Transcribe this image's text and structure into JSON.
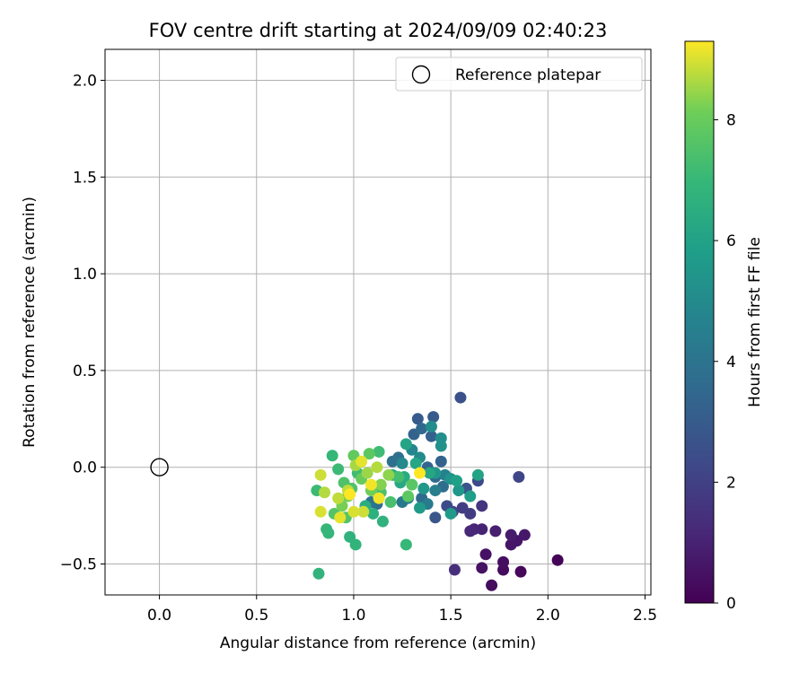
{
  "chart_data": {
    "type": "scatter",
    "title": "FOV centre drift starting at 2024/09/09 02:40:23",
    "xlabel": "Angular distance from reference (arcmin)",
    "ylabel": "Rotation from reference (arcmin)",
    "xlim": [
      -0.28,
      2.53
    ],
    "ylim": [
      -0.66,
      2.16
    ],
    "xticks": [
      {
        "value": 0.0,
        "label": "0.0"
      },
      {
        "value": 0.5,
        "label": "0.5"
      },
      {
        "value": 1.0,
        "label": "1.0"
      },
      {
        "value": 1.5,
        "label": "1.5"
      },
      {
        "value": 2.0,
        "label": "2.0"
      },
      {
        "value": 2.5,
        "label": "2.5"
      }
    ],
    "yticks": [
      {
        "value": -0.5,
        "label": "−0.5"
      },
      {
        "value": 0.0,
        "label": "0.0"
      },
      {
        "value": 0.5,
        "label": "0.5"
      },
      {
        "value": 1.0,
        "label": "1.0"
      },
      {
        "value": 1.5,
        "label": "1.5"
      },
      {
        "value": 2.0,
        "label": "2.0"
      }
    ],
    "grid": true,
    "legend": {
      "position": "top-right",
      "entries": [
        "Reference platepar"
      ]
    },
    "colorbar": {
      "label": "Hours from first FF file",
      "colormap": "viridis",
      "range": [
        0,
        9.3
      ],
      "ticks": [
        {
          "value": 0,
          "label": "0"
        },
        {
          "value": 2,
          "label": "2"
        },
        {
          "value": 4,
          "label": "4"
        },
        {
          "value": 6,
          "label": "6"
        },
        {
          "value": 8,
          "label": "8"
        }
      ]
    },
    "reference_point": {
      "x": 0.0,
      "y": 0.0,
      "name": "Reference platepar"
    },
    "points": [
      [
        2.05,
        -0.48,
        0.1
      ],
      [
        1.86,
        -0.54,
        0.2
      ],
      [
        1.71,
        -0.61,
        0.3
      ],
      [
        1.77,
        -0.53,
        0.3
      ],
      [
        1.77,
        -0.49,
        0.4
      ],
      [
        1.66,
        -0.52,
        0.5
      ],
      [
        1.68,
        -0.45,
        0.5
      ],
      [
        1.84,
        -0.38,
        0.6
      ],
      [
        1.81,
        -0.4,
        0.6
      ],
      [
        1.88,
        -0.35,
        0.7
      ],
      [
        1.81,
        -0.35,
        0.8
      ],
      [
        1.73,
        -0.33,
        0.9
      ],
      [
        1.66,
        -0.32,
        1.0
      ],
      [
        1.62,
        -0.32,
        1.1
      ],
      [
        1.52,
        -0.53,
        1.4
      ],
      [
        1.6,
        -0.33,
        1.2
      ],
      [
        1.66,
        -0.2,
        1.6
      ],
      [
        1.6,
        -0.24,
        1.8
      ],
      [
        1.56,
        -0.21,
        1.9
      ],
      [
        1.85,
        -0.05,
        2.2
      ],
      [
        1.55,
        0.36,
        2.6
      ],
      [
        1.51,
        -0.23,
        2.1
      ],
      [
        1.48,
        -0.2,
        2.4
      ],
      [
        1.58,
        -0.11,
        2.7
      ],
      [
        1.42,
        -0.26,
        2.8
      ],
      [
        1.64,
        -0.07,
        2.3
      ],
      [
        1.33,
        0.25,
        3.0
      ],
      [
        1.41,
        0.26,
        3.0
      ],
      [
        1.4,
        0.16,
        3.2
      ],
      [
        1.31,
        0.17,
        3.3
      ],
      [
        1.35,
        0.2,
        3.5
      ],
      [
        1.45,
        0.03,
        3.3
      ],
      [
        1.38,
        0.0,
        3.4
      ],
      [
        1.42,
        -0.05,
        3.6
      ],
      [
        1.35,
        -0.16,
        3.6
      ],
      [
        1.46,
        -0.1,
        3.7
      ],
      [
        1.23,
        0.05,
        3.8
      ],
      [
        1.2,
        0.03,
        3.9
      ],
      [
        1.12,
        -0.19,
        3.8
      ],
      [
        1.09,
        -0.18,
        4.0
      ],
      [
        1.25,
        -0.18,
        4.2
      ],
      [
        1.38,
        -0.19,
        4.4
      ],
      [
        1.42,
        -0.12,
        4.5
      ],
      [
        1.47,
        -0.04,
        4.6
      ],
      [
        1.28,
        -0.16,
        4.6
      ],
      [
        1.3,
        0.09,
        4.8
      ],
      [
        1.25,
        0.02,
        4.9
      ],
      [
        1.34,
        0.05,
        5.0
      ],
      [
        1.4,
        0.21,
        5.1
      ],
      [
        1.45,
        0.15,
        5.2
      ],
      [
        1.45,
        0.11,
        5.3
      ],
      [
        1.5,
        -0.06,
        5.4
      ],
      [
        1.54,
        -0.12,
        5.5
      ],
      [
        1.42,
        -0.03,
        5.5
      ],
      [
        1.36,
        -0.11,
        5.6
      ],
      [
        1.34,
        -0.21,
        5.7
      ],
      [
        1.5,
        -0.24,
        5.7
      ],
      [
        1.6,
        -0.15,
        5.8
      ],
      [
        1.53,
        -0.07,
        5.9
      ],
      [
        1.64,
        -0.04,
        6.0
      ],
      [
        1.27,
        0.12,
        6.1
      ],
      [
        1.32,
        0.02,
        6.2
      ],
      [
        1.39,
        -0.03,
        6.2
      ],
      [
        1.24,
        -0.08,
        6.3
      ],
      [
        1.26,
        -0.05,
        6.4
      ],
      [
        1.2,
        -0.04,
        6.4
      ],
      [
        1.06,
        -0.2,
        6.5
      ],
      [
        1.1,
        -0.24,
        6.6
      ],
      [
        1.15,
        -0.28,
        6.7
      ],
      [
        0.98,
        -0.36,
        6.7
      ],
      [
        1.01,
        -0.4,
        6.8
      ],
      [
        0.82,
        -0.55,
        6.8
      ],
      [
        0.87,
        -0.34,
        6.9
      ],
      [
        0.86,
        -0.32,
        6.9
      ],
      [
        1.27,
        -0.4,
        7.0
      ],
      [
        0.89,
        0.06,
        7.0
      ],
      [
        0.92,
        -0.01,
        7.1
      ],
      [
        0.81,
        -0.12,
        7.1
      ],
      [
        1.02,
        -0.03,
        7.2
      ],
      [
        1.13,
        0.08,
        7.2
      ],
      [
        1.23,
        -0.05,
        7.3
      ],
      [
        1.19,
        -0.18,
        7.4
      ],
      [
        1.14,
        -0.13,
        7.4
      ],
      [
        0.99,
        -0.11,
        7.5
      ],
      [
        0.95,
        -0.08,
        7.5
      ],
      [
        0.9,
        -0.24,
        7.6
      ],
      [
        0.96,
        -0.26,
        7.6
      ],
      [
        1.3,
        -0.09,
        7.7
      ],
      [
        1.28,
        -0.15,
        7.8
      ],
      [
        1.08,
        0.07,
        7.8
      ],
      [
        1.0,
        0.06,
        7.9
      ],
      [
        1.04,
        -0.06,
        8.0
      ],
      [
        1.09,
        -0.12,
        8.1
      ],
      [
        0.97,
        -0.15,
        8.2
      ],
      [
        0.94,
        -0.2,
        8.2
      ],
      [
        1.14,
        -0.09,
        8.3
      ],
      [
        1.18,
        -0.04,
        8.4
      ],
      [
        1.07,
        -0.03,
        8.5
      ],
      [
        1.01,
        0.01,
        8.6
      ],
      [
        1.12,
        0.0,
        8.7
      ],
      [
        0.85,
        -0.13,
        8.7
      ],
      [
        0.92,
        -0.16,
        8.8
      ],
      [
        0.97,
        -0.12,
        8.8
      ],
      [
        0.83,
        -0.04,
        8.9
      ],
      [
        1.05,
        -0.23,
        8.9
      ],
      [
        1.0,
        -0.23,
        9.0
      ],
      [
        0.83,
        -0.23,
        9.0
      ],
      [
        0.93,
        -0.26,
        9.1
      ],
      [
        1.04,
        0.03,
        9.1
      ],
      [
        1.09,
        -0.09,
        9.2
      ],
      [
        1.13,
        -0.16,
        9.2
      ],
      [
        1.34,
        -0.03,
        9.3
      ],
      [
        0.98,
        -0.14,
        9.3
      ]
    ]
  }
}
